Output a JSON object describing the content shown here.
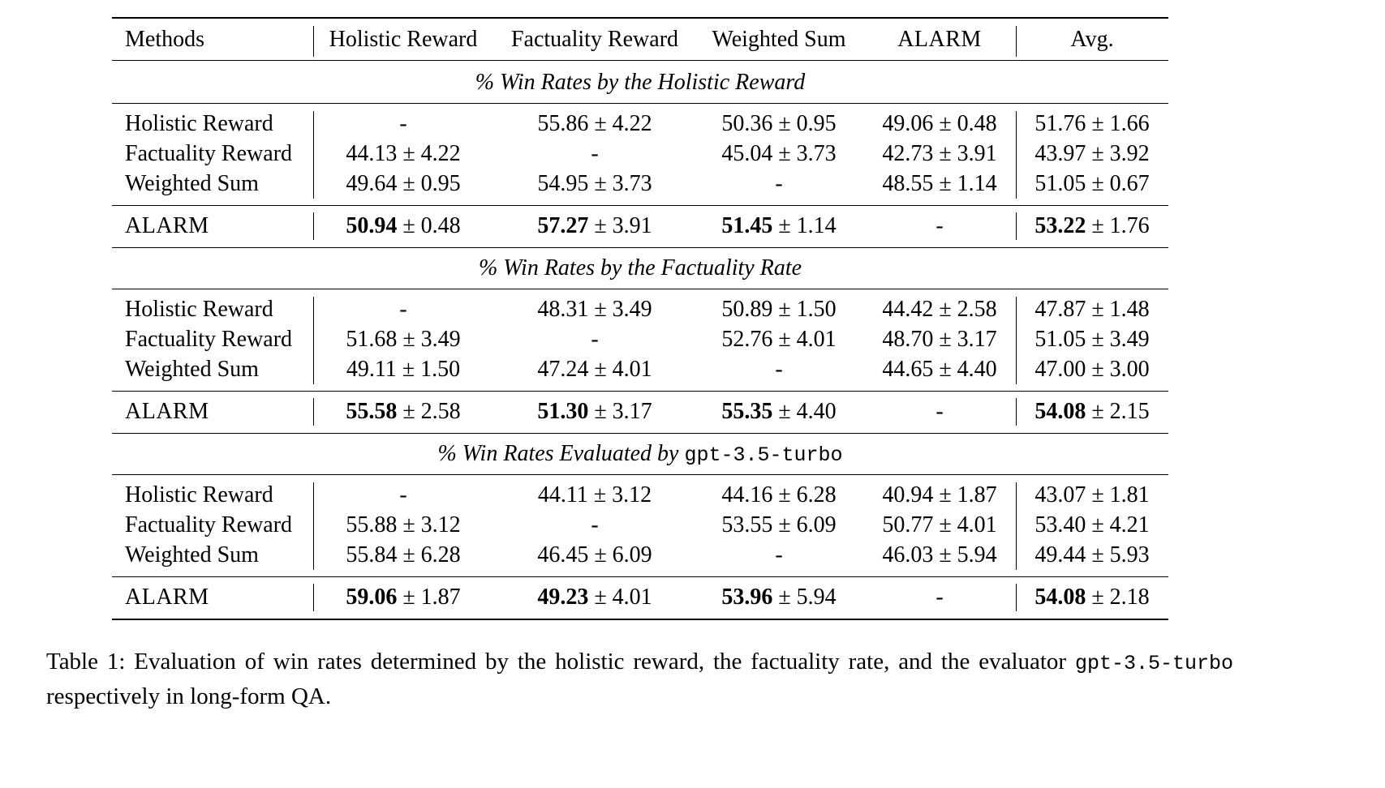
{
  "header": {
    "methods": "Methods",
    "columns": [
      "Holistic Reward",
      "Factuality Reward",
      "Weighted Sum",
      "ALARM",
      "Avg."
    ]
  },
  "sections": [
    {
      "title": "% Win Rates by the Holistic Reward",
      "title_mono": "",
      "rows": [
        {
          "method": "Holistic Reward",
          "cells": [
            {
              "main": "-",
              "pm": ""
            },
            {
              "main": "55.86",
              "pm": "± 4.22"
            },
            {
              "main": "50.36",
              "pm": "± 0.95"
            },
            {
              "main": "49.06",
              "pm": "± 0.48"
            },
            {
              "main": "51.76",
              "pm": "± 1.66"
            }
          ]
        },
        {
          "method": "Factuality Reward",
          "cells": [
            {
              "main": "44.13",
              "pm": "± 4.22"
            },
            {
              "main": "-",
              "pm": ""
            },
            {
              "main": "45.04",
              "pm": "± 3.73"
            },
            {
              "main": "42.73",
              "pm": "± 3.91"
            },
            {
              "main": "43.97",
              "pm": "± 3.92"
            }
          ]
        },
        {
          "method": "Weighted Sum",
          "cells": [
            {
              "main": "49.64",
              "pm": "± 0.95"
            },
            {
              "main": "54.95",
              "pm": "± 3.73"
            },
            {
              "main": "-",
              "pm": ""
            },
            {
              "main": "48.55",
              "pm": "± 1.14"
            },
            {
              "main": "51.05",
              "pm": "± 0.67"
            }
          ]
        }
      ],
      "alarm": {
        "method": "ALARM",
        "cells": [
          {
            "main": "50.94",
            "pm": "± 0.48"
          },
          {
            "main": "57.27",
            "pm": "± 3.91"
          },
          {
            "main": "51.45",
            "pm": "± 1.14"
          },
          {
            "main": "-",
            "pm": ""
          },
          {
            "main": "53.22",
            "pm": "± 1.76"
          }
        ]
      }
    },
    {
      "title": "% Win Rates by the Factuality Rate",
      "title_mono": "",
      "rows": [
        {
          "method": "Holistic Reward",
          "cells": [
            {
              "main": "-",
              "pm": ""
            },
            {
              "main": "48.31",
              "pm": "± 3.49"
            },
            {
              "main": "50.89",
              "pm": "± 1.50"
            },
            {
              "main": "44.42",
              "pm": "± 2.58"
            },
            {
              "main": "47.87",
              "pm": "± 1.48"
            }
          ]
        },
        {
          "method": "Factuality Reward",
          "cells": [
            {
              "main": "51.68",
              "pm": "± 3.49"
            },
            {
              "main": "-",
              "pm": ""
            },
            {
              "main": "52.76",
              "pm": "± 4.01"
            },
            {
              "main": "48.70",
              "pm": "± 3.17"
            },
            {
              "main": "51.05",
              "pm": "± 3.49"
            }
          ]
        },
        {
          "method": "Weighted Sum",
          "cells": [
            {
              "main": "49.11",
              "pm": "± 1.50"
            },
            {
              "main": "47.24",
              "pm": "± 4.01"
            },
            {
              "main": "-",
              "pm": ""
            },
            {
              "main": "44.65",
              "pm": "± 4.40"
            },
            {
              "main": "47.00",
              "pm": "± 3.00"
            }
          ]
        }
      ],
      "alarm": {
        "method": "ALARM",
        "cells": [
          {
            "main": "55.58",
            "pm": "± 2.58"
          },
          {
            "main": "51.30",
            "pm": "± 3.17"
          },
          {
            "main": "55.35",
            "pm": "± 4.40"
          },
          {
            "main": "-",
            "pm": ""
          },
          {
            "main": "54.08",
            "pm": "± 2.15"
          }
        ]
      }
    },
    {
      "title": "% Win Rates Evaluated by ",
      "title_mono": "gpt-3.5-turbo",
      "rows": [
        {
          "method": "Holistic Reward",
          "cells": [
            {
              "main": "-",
              "pm": ""
            },
            {
              "main": "44.11",
              "pm": "± 3.12"
            },
            {
              "main": "44.16",
              "pm": "± 6.28"
            },
            {
              "main": "40.94",
              "pm": "± 1.87"
            },
            {
              "main": "43.07",
              "pm": "± 1.81"
            }
          ]
        },
        {
          "method": "Factuality Reward",
          "cells": [
            {
              "main": "55.88",
              "pm": "± 3.12"
            },
            {
              "main": "-",
              "pm": ""
            },
            {
              "main": "53.55",
              "pm": "± 6.09"
            },
            {
              "main": "50.77",
              "pm": "± 4.01"
            },
            {
              "main": "53.40",
              "pm": "± 4.21"
            }
          ]
        },
        {
          "method": "Weighted Sum",
          "cells": [
            {
              "main": "55.84",
              "pm": "± 6.28"
            },
            {
              "main": "46.45",
              "pm": "± 6.09"
            },
            {
              "main": "-",
              "pm": ""
            },
            {
              "main": "46.03",
              "pm": "± 5.94"
            },
            {
              "main": "49.44",
              "pm": "± 5.93"
            }
          ]
        }
      ],
      "alarm": {
        "method": "ALARM",
        "cells": [
          {
            "main": "59.06",
            "pm": "± 1.87"
          },
          {
            "main": "49.23",
            "pm": "± 4.01"
          },
          {
            "main": "53.96",
            "pm": "± 5.94"
          },
          {
            "main": "-",
            "pm": ""
          },
          {
            "main": "54.08",
            "pm": "± 2.18"
          }
        ]
      }
    }
  ],
  "caption": {
    "part1": "Table 1: Evaluation of win rates determined by the holistic reward, the factuality rate, and the evaluator ",
    "mono": "gpt-3.5-turbo",
    "part2": " respectively in long-form QA."
  }
}
